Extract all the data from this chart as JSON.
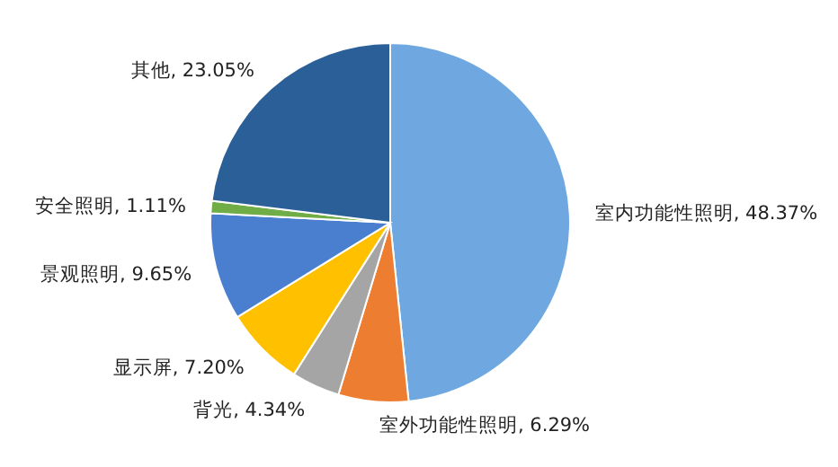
{
  "chart_data": {
    "type": "pie",
    "categories": [
      "室内功能性照明",
      "室外功能性照明",
      "背光",
      "显示屏",
      "景观照明",
      "安全照明",
      "其他"
    ],
    "values": [
      48.37,
      6.29,
      4.34,
      7.2,
      9.65,
      1.11,
      23.05
    ],
    "value_labels": [
      "48.37%",
      "6.29%",
      "4.34%",
      "7.20%",
      "9.65%",
      "1.11%",
      "23.05%"
    ],
    "colors": [
      "#6fa8e0",
      "#ed7d31",
      "#a5a5a5",
      "#ffc000",
      "#4a7fd0",
      "#70ad47",
      "#2b5f98"
    ]
  }
}
